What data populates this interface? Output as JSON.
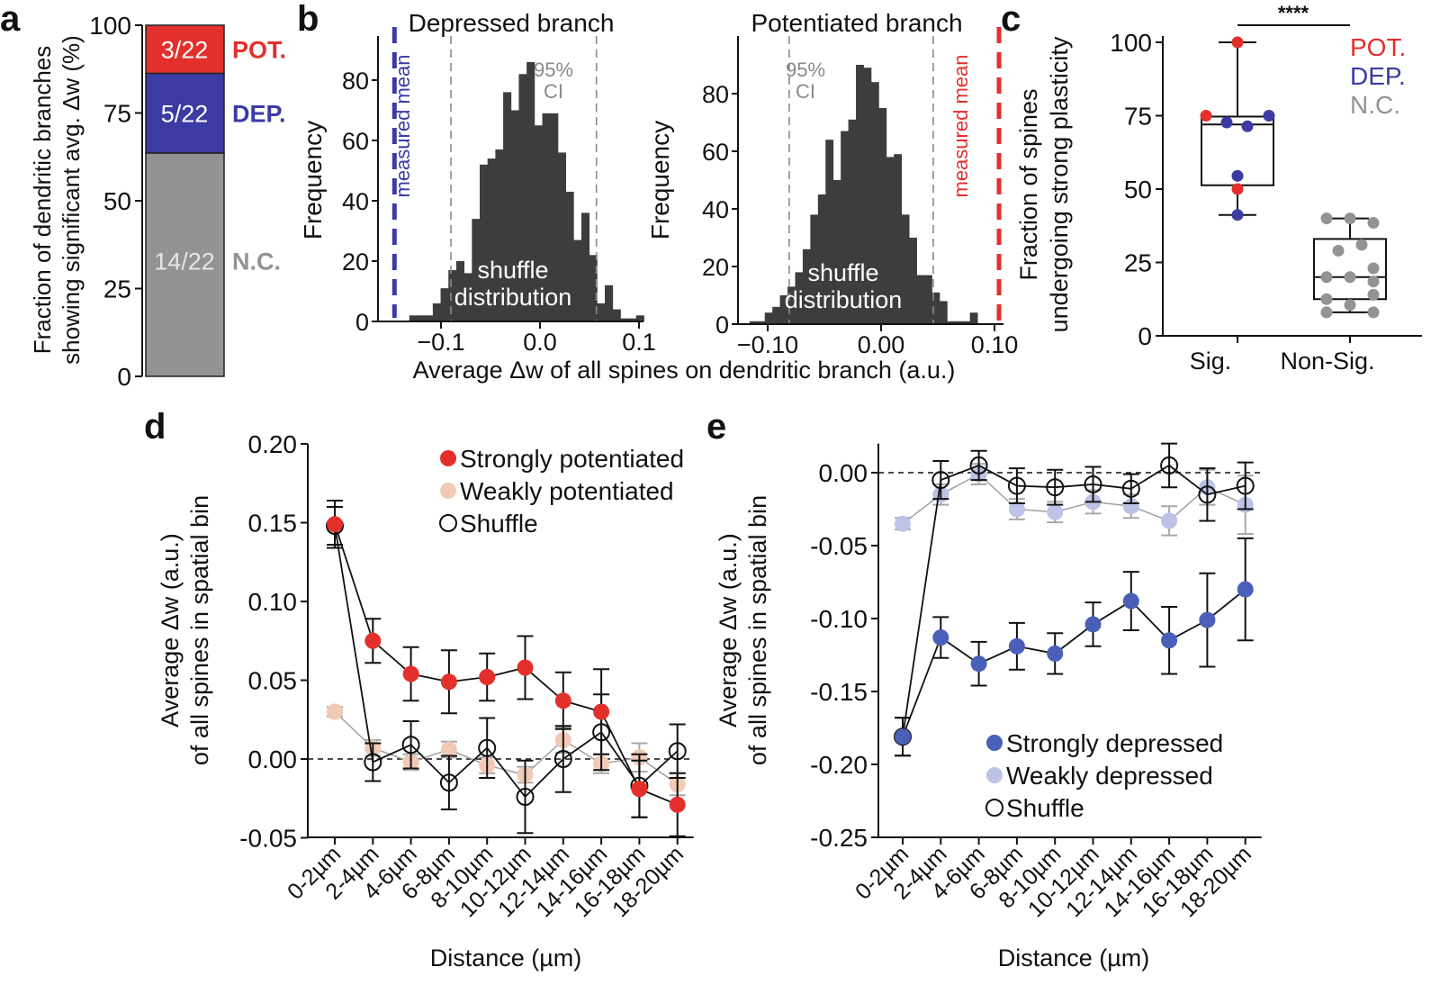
{
  "panel_labels": {
    "a": "a",
    "b": "b",
    "c": "c",
    "d": "d",
    "e": "e"
  },
  "colors": {
    "pot": "#e3302c",
    "dep": "#3b3ba3",
    "nc": "#939393",
    "hist": "#3d3d3d",
    "weak_pot": "#f1c9b5",
    "strong_dep": "#4a5fb8",
    "weak_dep": "#bcc3e6"
  },
  "chart_data": [
    {
      "panel": "a",
      "type": "bar",
      "stacked": true,
      "ylabel_lines": [
        "Fraction of dendritic branches",
        "showing significant avg. Δw (%)"
      ],
      "ylim": [
        0,
        100
      ],
      "yticks": [
        "0",
        "25",
        "50",
        "75",
        "100"
      ],
      "segments": [
        {
          "label": "N.C.",
          "count_label": "14/22",
          "value": 63.6
        },
        {
          "label": "DEP.",
          "count_label": "5/22",
          "value": 22.7
        },
        {
          "label": "POT.",
          "count_label": "3/22",
          "value": 13.6
        }
      ]
    },
    {
      "panel": "b-left",
      "type": "bar",
      "subtype": "histogram",
      "title": "Depressed branch",
      "ylabel": "Frequency",
      "yticks": [
        "0",
        "20",
        "40",
        "60",
        "80"
      ],
      "xticks": [
        {
          "value": -0.1,
          "label": "−0.1"
        },
        {
          "value": 0.0,
          "label": "0.0"
        },
        {
          "value": 0.1,
          "label": "0.1"
        }
      ],
      "bin_start": -0.132,
      "bin_width": 0.0079,
      "counts": [
        2,
        2,
        2,
        6,
        11,
        17,
        20,
        16,
        34,
        52,
        54,
        57,
        76,
        70,
        82,
        86,
        65,
        69,
        69,
        56,
        43,
        27,
        36,
        22,
        6,
        12,
        4,
        1,
        1,
        2
      ],
      "ci_bounds": [
        -0.09,
        0.057
      ],
      "ci_label": [
        "95%",
        "CI"
      ],
      "measured_mean": -0.147,
      "measured_mean_label": "measured mean",
      "annotation": [
        "shuffle",
        "distribution"
      ]
    },
    {
      "panel": "b-right",
      "type": "bar",
      "subtype": "histogram",
      "title": "Potentiated branch",
      "ylabel": "Frequency",
      "yticks": [
        "0",
        "20",
        "40",
        "60",
        "80"
      ],
      "xticks": [
        {
          "value": -0.1,
          "label": "−0.10"
        },
        {
          "value": 0.0,
          "label": "0.00"
        },
        {
          "value": 0.1,
          "label": "0.10"
        }
      ],
      "bin_start": -0.116,
      "bin_width": 0.0067,
      "counts": [
        1,
        1,
        4,
        6,
        10,
        13,
        18,
        26,
        38,
        45,
        64,
        50,
        67,
        71,
        90,
        89,
        84,
        75,
        58,
        59,
        38,
        30,
        17,
        17,
        11,
        8,
        1,
        1,
        1,
        4
      ],
      "ci_bounds": [
        -0.081,
        0.046
      ],
      "ci_label": [
        "95%",
        "CI"
      ],
      "measured_mean": 0.104,
      "measured_mean_label": "measured mean",
      "annotation": [
        "shuffle",
        "distribution"
      ]
    },
    {
      "panel": "b-shared",
      "xlabel": "Average Δw of all spines on dendritic branch (a.u.)"
    },
    {
      "panel": "c",
      "type": "box",
      "ylabel_lines": [
        "Fraction of spines",
        "undergoing strong plasticity"
      ],
      "ylim": [
        0,
        100
      ],
      "yticks": [
        "0",
        "25",
        "50",
        "75",
        "100"
      ],
      "categories": [
        "Sig.",
        "Non-Sig."
      ],
      "significance": "****",
      "legend": [
        "POT.",
        "DEP.",
        "N.C."
      ],
      "boxes": [
        {
          "min": 41.2,
          "q1": 51.3,
          "median": 72.0,
          "q3": 74.7,
          "max": 100,
          "points": [
            {
              "v": 100,
              "g": "pot"
            },
            {
              "v": 75,
              "g": "pot"
            },
            {
              "v": 72.7,
              "g": "dep"
            },
            {
              "v": 71.4,
              "g": "dep"
            },
            {
              "v": 75,
              "g": "dep"
            },
            {
              "v": 54.5,
              "g": "dep"
            },
            {
              "v": 50,
              "g": "pot"
            },
            {
              "v": 41.2,
              "g": "dep"
            }
          ]
        },
        {
          "min": 8,
          "q1": 12.5,
          "median": 20,
          "q3": 33,
          "max": 40,
          "points": [
            {
              "v": 40,
              "g": "nc"
            },
            {
              "v": 40,
              "g": "nc"
            },
            {
              "v": 38.5,
              "g": "nc"
            },
            {
              "v": 29,
              "g": "nc"
            },
            {
              "v": 31,
              "g": "nc"
            },
            {
              "v": 23,
              "g": "nc"
            },
            {
              "v": 20,
              "g": "nc"
            },
            {
              "v": 20,
              "g": "nc"
            },
            {
              "v": 18.5,
              "g": "nc"
            },
            {
              "v": 14,
              "g": "nc"
            },
            {
              "v": 12.5,
              "g": "nc"
            },
            {
              "v": 10.5,
              "g": "nc"
            },
            {
              "v": 8,
              "g": "nc"
            },
            {
              "v": 8,
              "g": "nc"
            }
          ]
        }
      ]
    },
    {
      "panel": "d",
      "type": "line",
      "xlabel": "Distance (µm)",
      "ylabel_lines": [
        "Average Δw (a.u.)",
        "of all spines in spatial bin"
      ],
      "ylim": [
        -0.05,
        0.2
      ],
      "yticks": [
        "-0.05",
        "0.00",
        "0.05",
        "0.10",
        "0.15",
        "0.20"
      ],
      "categories": [
        "0-2µm",
        "2-4µm",
        "4-6µm",
        "6-8µm",
        "8-10µm",
        "10-12µm",
        "12-14µm",
        "14-16µm",
        "16-18µm",
        "18-20µm"
      ],
      "series": [
        {
          "name": "Weakly potentiated",
          "values": [
            0.03,
            0.007,
            -0.002,
            0.006,
            -0.004,
            -0.01,
            0.012,
            -0.003,
            0.001,
            -0.016
          ],
          "errors": [
            0.003,
            0.005,
            0.005,
            0.005,
            0.005,
            0.005,
            0.008,
            0.006,
            0.009,
            0.007
          ]
        },
        {
          "name": "Shuffle",
          "values": [
            0.148,
            -0.002,
            0.009,
            -0.015,
            0.007,
            -0.024,
            0.0,
            0.017,
            -0.017,
            0.005
          ],
          "errors": [
            0.012,
            0.012,
            0.015,
            0.017,
            0.019,
            0.023,
            0.021,
            0.024,
            0.02,
            0.017
          ]
        },
        {
          "name": "Strongly potentiated",
          "values": [
            0.149,
            0.075,
            0.054,
            0.049,
            0.052,
            0.058,
            0.037,
            0.03,
            -0.019,
            -0.029
          ],
          "errors": [
            0.015,
            0.014,
            0.017,
            0.02,
            0.015,
            0.02,
            0.018,
            0.027,
            0.018,
            0.02
          ]
        }
      ]
    },
    {
      "panel": "e",
      "type": "line",
      "xlabel": "Distance (µm)",
      "ylabel_lines": [
        "Average Δw (a.u.)",
        "of all spines in spatial bin"
      ],
      "ylim": [
        -0.25,
        0.02
      ],
      "yticks": [
        "-0.25",
        "-0.20",
        "-0.15",
        "-0.10",
        "-0.05",
        "0.00"
      ],
      "categories": [
        "0-2µm",
        "2-4µm",
        "4-6µm",
        "6-8µm",
        "8-10µm",
        "10-12µm",
        "12-14µm",
        "14-16µm",
        "16-18µm",
        "18-20µm"
      ],
      "series": [
        {
          "name": "Weakly depressed",
          "values": [
            -0.035,
            -0.015,
            -0.001,
            -0.025,
            -0.027,
            -0.02,
            -0.023,
            -0.033,
            -0.01,
            -0.022
          ],
          "errors": [
            0.004,
            0.007,
            0.007,
            0.007,
            0.007,
            0.008,
            0.008,
            0.01,
            0.012,
            0.02
          ]
        },
        {
          "name": "Shuffle",
          "values": [
            -0.181,
            -0.005,
            0.005,
            -0.009,
            -0.01,
            -0.008,
            -0.011,
            0.005,
            -0.015,
            -0.009
          ],
          "errors": [
            0.013,
            0.013,
            0.01,
            0.012,
            0.012,
            0.012,
            0.01,
            0.015,
            0.018,
            0.016
          ]
        },
        {
          "name": "Strongly depressed",
          "values": [
            -0.181,
            -0.113,
            -0.131,
            -0.119,
            -0.124,
            -0.104,
            -0.088,
            -0.115,
            -0.101,
            -0.08
          ],
          "errors": [
            0.013,
            0.014,
            0.015,
            0.016,
            0.014,
            0.015,
            0.02,
            0.023,
            0.032,
            0.035
          ]
        }
      ]
    }
  ]
}
